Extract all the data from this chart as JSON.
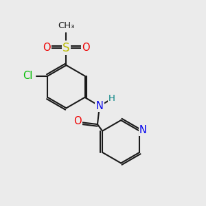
{
  "background_color": "#ebebeb",
  "bond_color": "#1a1a1a",
  "bond_width": 1.5,
  "atoms": {
    "Cl": {
      "color": "#00bb00",
      "fontsize": 10.5
    },
    "O": {
      "color": "#ee0000",
      "fontsize": 10.5
    },
    "S": {
      "color": "#bbbb00",
      "fontsize": 12
    },
    "N": {
      "color": "#0000ee",
      "fontsize": 10.5
    },
    "H": {
      "color": "#008080",
      "fontsize": 9.5
    },
    "C": {
      "color": "#1a1a1a",
      "fontsize": 9
    }
  },
  "figsize": [
    3.0,
    3.0
  ],
  "dpi": 100
}
